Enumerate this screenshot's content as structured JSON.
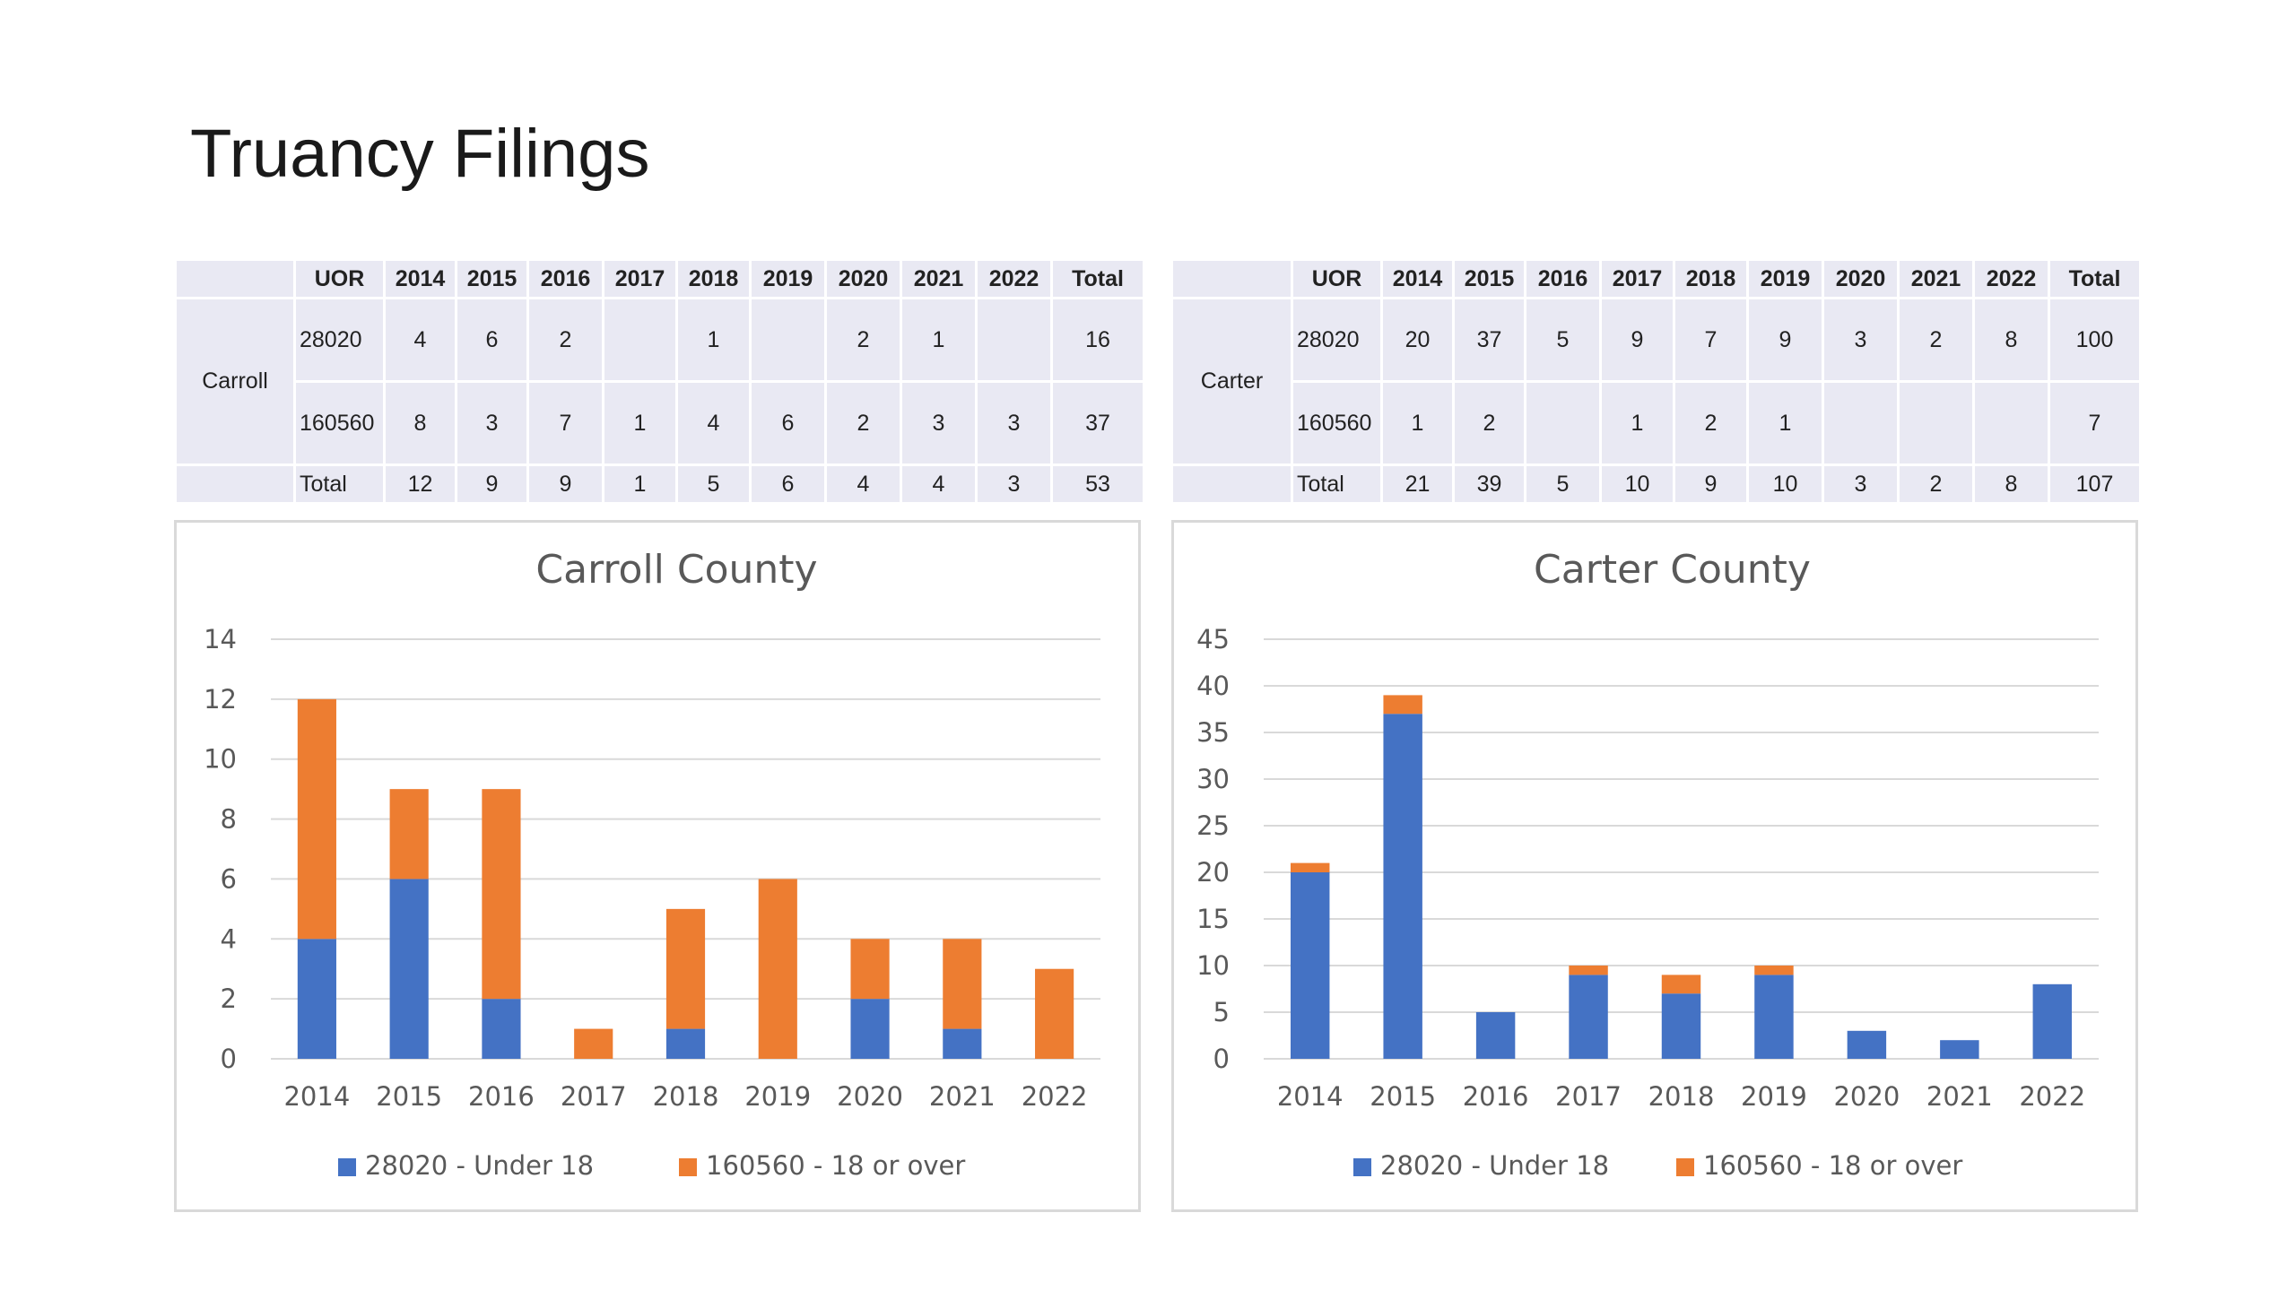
{
  "page_title": "Truancy Filings",
  "tables": [
    {
      "county": "Carroll",
      "headers": [
        "UOR",
        "2014",
        "2015",
        "2016",
        "2017",
        "2018",
        "2019",
        "2020",
        "2021",
        "2022",
        "Total"
      ],
      "rows": [
        [
          "28020",
          "4",
          "6",
          "2",
          "",
          "1",
          "",
          "2",
          "1",
          "",
          "16"
        ],
        [
          "160560",
          "8",
          "3",
          "7",
          "1",
          "4",
          "6",
          "2",
          "3",
          "3",
          "37"
        ],
        [
          "Total",
          "12",
          "9",
          "9",
          "1",
          "5",
          "6",
          "4",
          "4",
          "3",
          "53"
        ]
      ]
    },
    {
      "county": "Carter",
      "headers": [
        "UOR",
        "2014",
        "2015",
        "2016",
        "2017",
        "2018",
        "2019",
        "2020",
        "2021",
        "2022",
        "Total"
      ],
      "rows": [
        [
          "28020",
          "20",
          "37",
          "5",
          "9",
          "7",
          "9",
          "3",
          "2",
          "8",
          "100"
        ],
        [
          "160560",
          "1",
          "2",
          "",
          "1",
          "2",
          "1",
          "",
          "",
          "",
          "7"
        ],
        [
          "Total",
          "21",
          "39",
          "5",
          "10",
          "9",
          "10",
          "3",
          "2",
          "8",
          "107"
        ]
      ]
    }
  ],
  "colors": {
    "under18": "#4472C4",
    "over18": "#ED7D31",
    "grid": "#d9d9d9",
    "axis_text": "#595959"
  },
  "chart_data": [
    {
      "type": "bar",
      "stacked": true,
      "title": "Carroll County",
      "categories": [
        "2014",
        "2015",
        "2016",
        "2017",
        "2018",
        "2019",
        "2020",
        "2021",
        "2022"
      ],
      "series": [
        {
          "name": "28020 - Under 18",
          "values": [
            4,
            6,
            2,
            0,
            1,
            0,
            2,
            1,
            0
          ]
        },
        {
          "name": "160560 - 18 or over",
          "values": [
            8,
            3,
            7,
            1,
            4,
            6,
            2,
            3,
            3
          ]
        }
      ],
      "ylim": [
        0,
        14
      ],
      "yticks": [
        "0",
        "2",
        "4",
        "6",
        "8",
        "10",
        "12",
        "14"
      ],
      "grid": true,
      "legend": "bottom"
    },
    {
      "type": "bar",
      "stacked": true,
      "title": "Carter County",
      "categories": [
        "2014",
        "2015",
        "2016",
        "2017",
        "2018",
        "2019",
        "2020",
        "2021",
        "2022"
      ],
      "series": [
        {
          "name": "28020 - Under 18",
          "values": [
            20,
            37,
            5,
            9,
            7,
            9,
            3,
            2,
            8
          ]
        },
        {
          "name": "160560 - 18 or over",
          "values": [
            1,
            2,
            0,
            1,
            2,
            1,
            0,
            0,
            0
          ]
        }
      ],
      "ylim": [
        0,
        45
      ],
      "yticks": [
        "0",
        "5",
        "10",
        "15",
        "20",
        "25",
        "30",
        "35",
        "40",
        "45"
      ],
      "grid": true,
      "legend": "bottom"
    }
  ]
}
